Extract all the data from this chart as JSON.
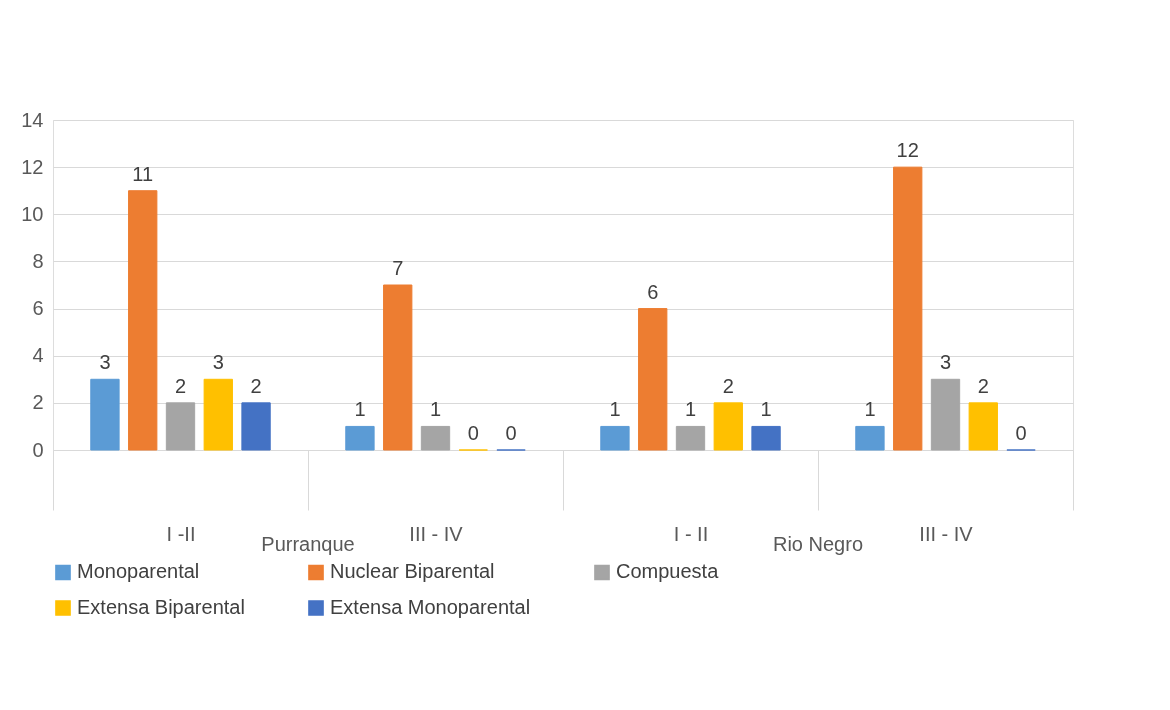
{
  "chart_data": {
    "type": "bar",
    "categories": [
      "I -II",
      "III - IV",
      "I - II",
      "III - IV"
    ],
    "series": [
      {
        "name": "Monoparental",
        "color": "#5b9bd5",
        "values": [
          3,
          1,
          1,
          1
        ]
      },
      {
        "name": "Nuclear Biparental",
        "color": "#ed7d31",
        "values": [
          11,
          7,
          6,
          12
        ]
      },
      {
        "name": "Compuesta",
        "color": "#a5a5a5",
        "values": [
          2,
          1,
          1,
          3
        ]
      },
      {
        "name": "Extensa Biparental",
        "color": "#ffc000",
        "values": [
          3,
          0,
          2,
          2
        ]
      },
      {
        "name": "Extensa Monoparental",
        "color": "#4472c4",
        "values": [
          2,
          0,
          1,
          0
        ]
      }
    ],
    "annotations": [
      "Purranque",
      "Rio Negro"
    ],
    "ylim": [
      0,
      14
    ],
    "yticks": [
      0,
      2,
      4,
      6,
      8,
      10,
      12,
      14
    ],
    "grid": "y",
    "data_labels": true,
    "legend": "bottom"
  }
}
